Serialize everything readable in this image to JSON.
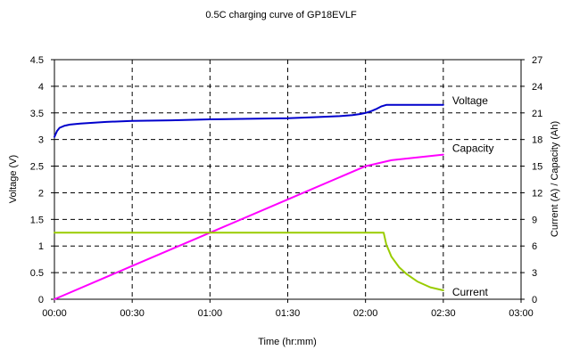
{
  "chart_data": {
    "type": "line",
    "title": "0.5C charging curve of GP18EVLF",
    "xlabel": "Time (hr:mm)",
    "ylabel_left": "Voltage (V)",
    "ylabel_right": "Current (A) / Capacity (Ah)",
    "x_unit": "minutes",
    "xlim": [
      0,
      180
    ],
    "x_ticks": [
      0,
      30,
      60,
      90,
      120,
      150,
      180
    ],
    "x_tick_labels": [
      "00:00",
      "00:30",
      "01:00",
      "01:30",
      "02:00",
      "02:30",
      "03:00"
    ],
    "ylim_left": [
      0,
      4.5
    ],
    "y_ticks_left": [
      0,
      0.5,
      1,
      1.5,
      2,
      2.5,
      3,
      3.5,
      4,
      4.5
    ],
    "y_tick_labels_left": [
      "0",
      "0.5",
      "1",
      "1.5",
      "2",
      "2.5",
      "3",
      "3.5",
      "4",
      "4.5"
    ],
    "ylim_right": [
      0,
      27
    ],
    "y_ticks_right": [
      0,
      3,
      6,
      9,
      12,
      15,
      18,
      21,
      24,
      27
    ],
    "y_tick_labels_right": [
      "0",
      "3",
      "6",
      "9",
      "12",
      "15",
      "18",
      "21",
      "24",
      "27"
    ],
    "grid": true,
    "series": [
      {
        "name": "Voltage",
        "axis": "left",
        "color": "#0000cc",
        "x": [
          0,
          1,
          2,
          4,
          6,
          10,
          20,
          30,
          45,
          60,
          75,
          90,
          100,
          110,
          115,
          118,
          120,
          122,
          124,
          126,
          128,
          150
        ],
        "y": [
          3.05,
          3.16,
          3.22,
          3.26,
          3.28,
          3.3,
          3.33,
          3.35,
          3.36,
          3.38,
          3.39,
          3.4,
          3.42,
          3.44,
          3.46,
          3.48,
          3.5,
          3.53,
          3.57,
          3.62,
          3.65,
          3.65
        ]
      },
      {
        "name": "Capacity",
        "axis": "right",
        "color": "#ff00ff",
        "x": [
          0,
          30,
          60,
          90,
          120,
          130,
          150
        ],
        "y": [
          0,
          3.75,
          7.5,
          11.25,
          15.0,
          15.67,
          16.3
        ]
      },
      {
        "name": "Current",
        "axis": "right",
        "color": "#99cc00",
        "x": [
          0,
          127,
          128,
          130,
          133,
          136,
          140,
          145,
          150
        ],
        "y": [
          7.5,
          7.5,
          6.2,
          4.8,
          3.6,
          2.8,
          2.0,
          1.35,
          1.0
        ]
      }
    ],
    "annotations": [
      {
        "text": "Voltage",
        "series": "Voltage"
      },
      {
        "text": "Capacity",
        "series": "Capacity"
      },
      {
        "text": "Current",
        "series": "Current"
      }
    ]
  }
}
